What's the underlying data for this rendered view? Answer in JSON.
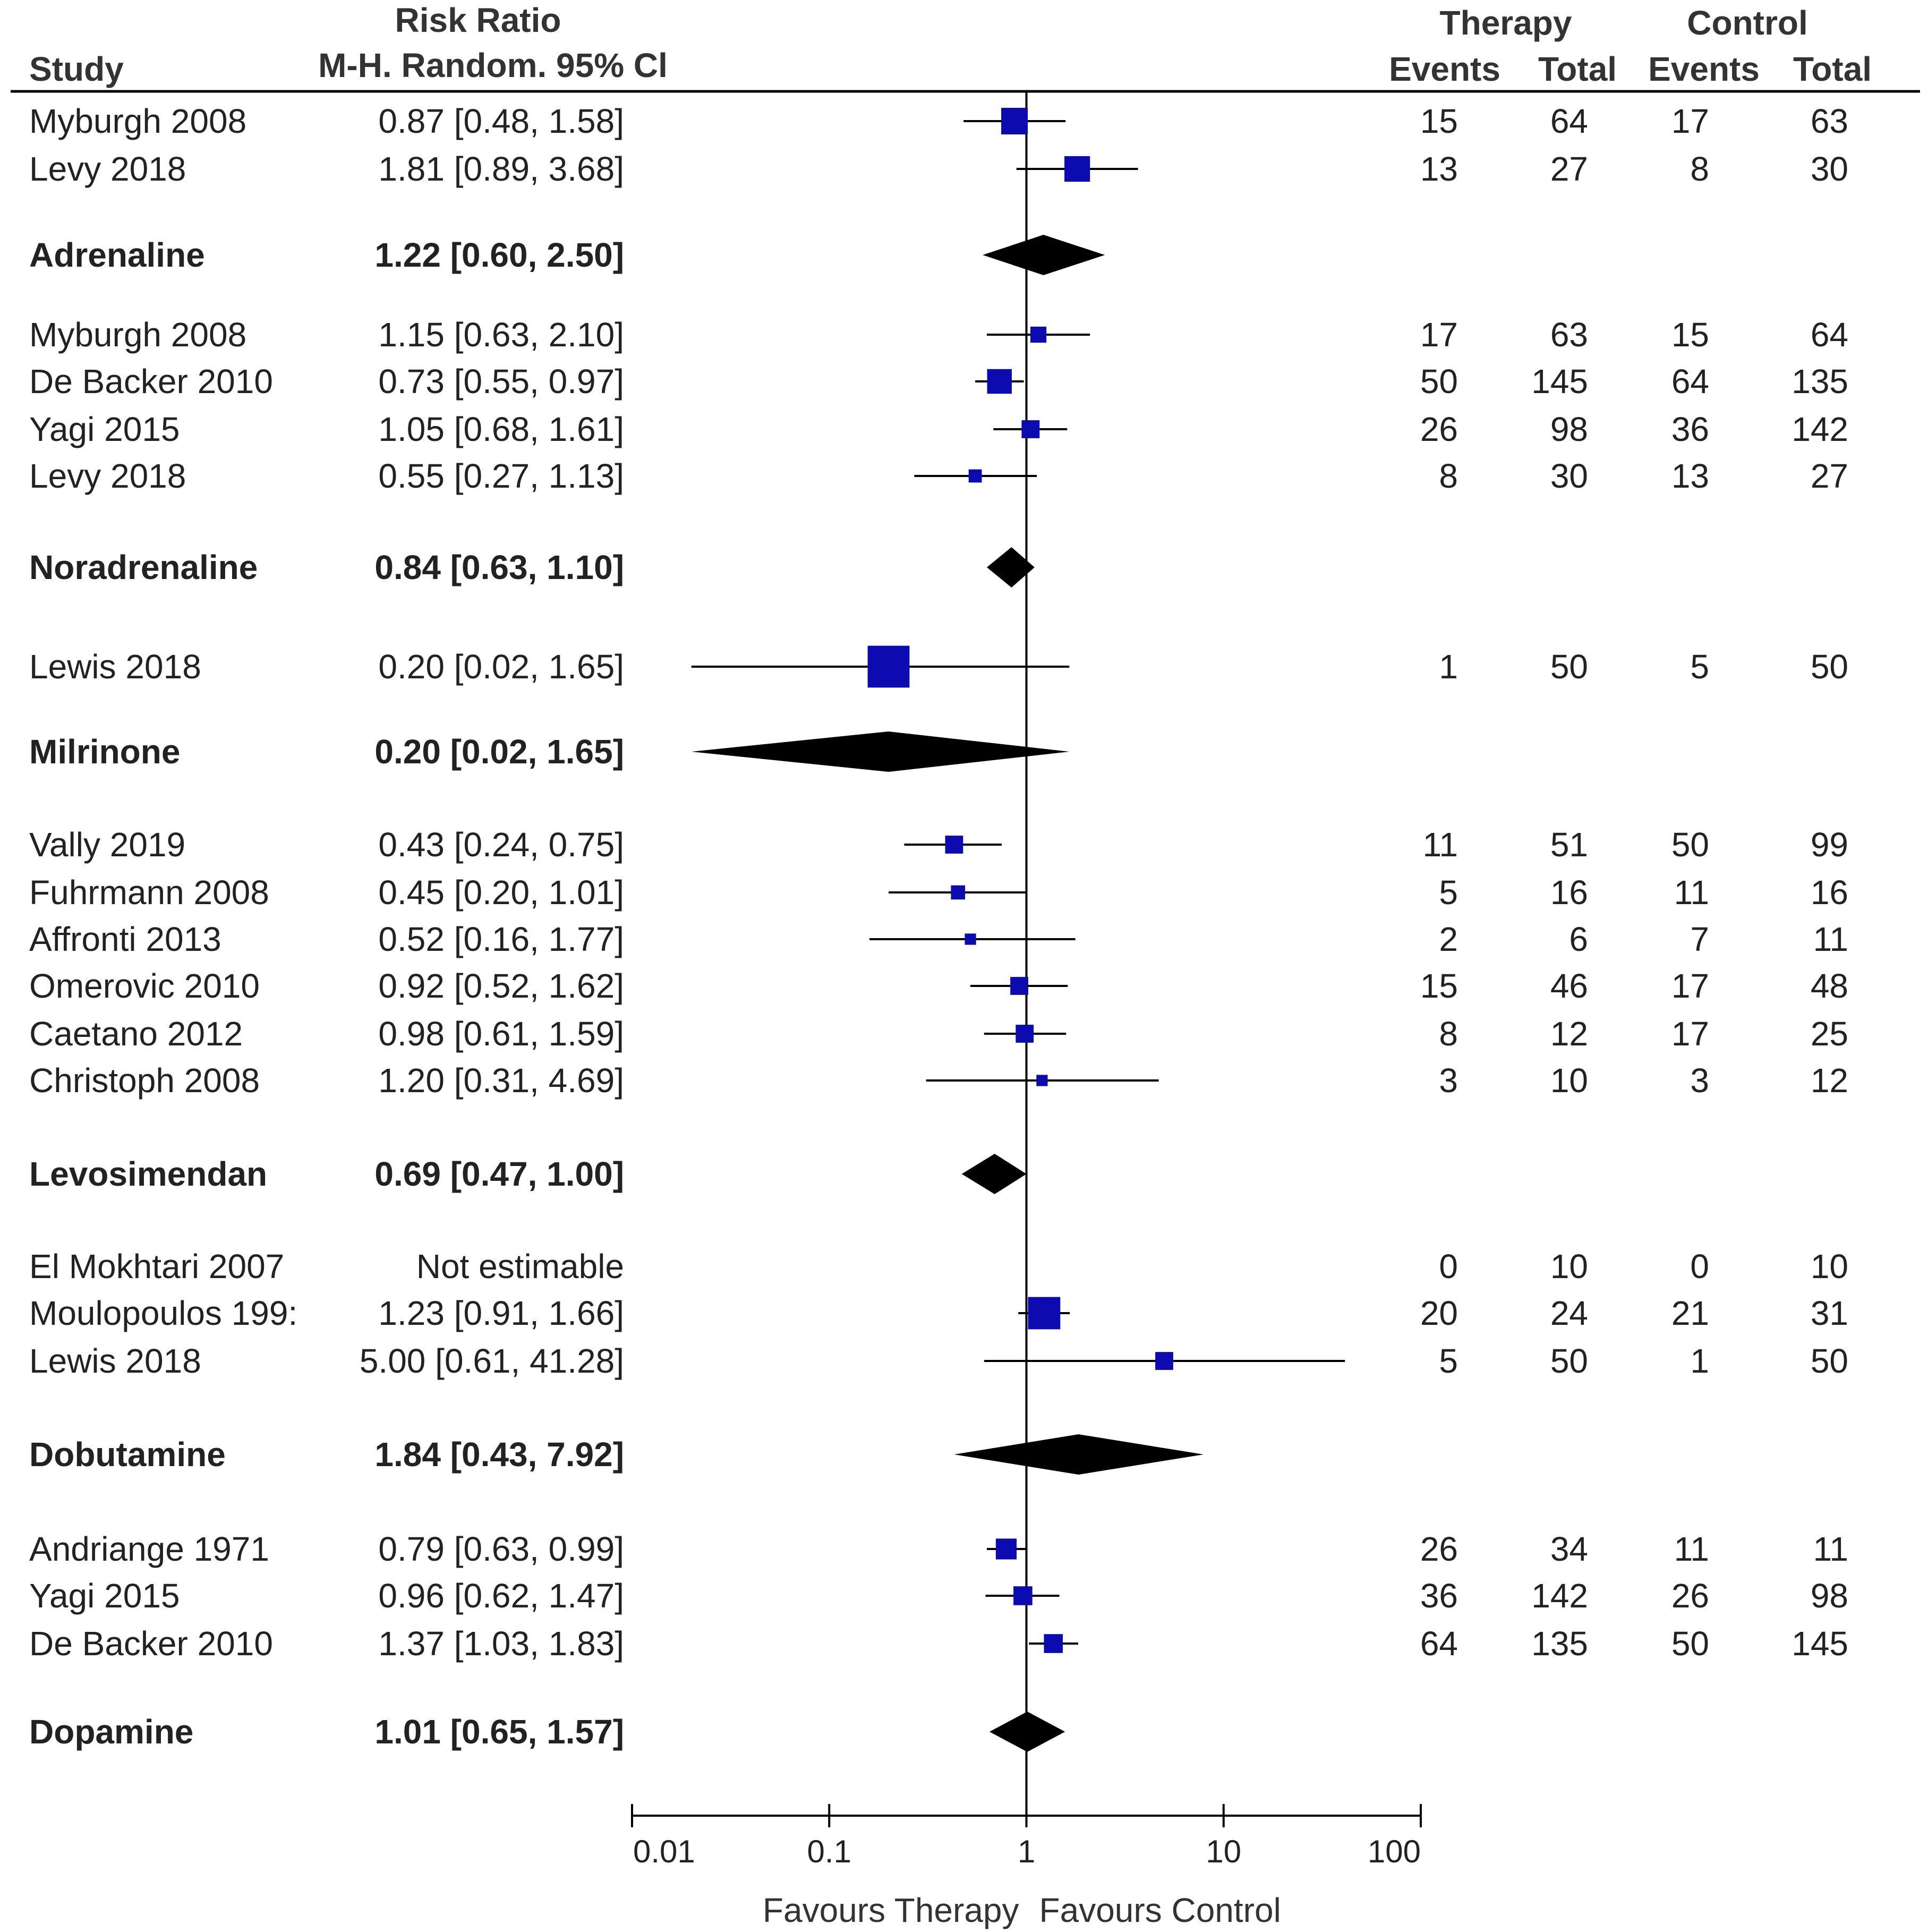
{
  "headers": {
    "study": "Study",
    "estimate_line1": "Risk Ratio",
    "estimate_line2": "M-H. Random. 95% Cl",
    "therapy": "Therapy",
    "control": "Control",
    "events": "Events",
    "total": "Total"
  },
  "axis": {
    "ticks": [
      0.01,
      0.1,
      1,
      10,
      100
    ],
    "tick_labels": [
      "0.01",
      "0.1",
      "1",
      "10",
      "100"
    ],
    "left_label": "Favours Therapy",
    "right_label": "Favours Control",
    "scale": "log",
    "range": [
      0.01,
      100
    ]
  },
  "colors": {
    "study_marker": "#0b0bb0",
    "pooled_diamond": "#000000",
    "line": "#000000"
  },
  "chart_data": {
    "type": "forest",
    "rows": [
      {
        "kind": "study",
        "label": "Myburgh 2008",
        "ci_text": "0.87 [0.48, 1.58]",
        "rr": 0.87,
        "lo": 0.48,
        "hi": 1.58,
        "weight": 1.0,
        "te": "15",
        "tt": "64",
        "ce": "17",
        "ct": "63"
      },
      {
        "kind": "study",
        "label": "Levy 2018",
        "ci_text": "1.81 [0.89, 3.68]",
        "rr": 1.81,
        "lo": 0.89,
        "hi": 3.68,
        "weight": 0.95,
        "te": "13",
        "tt": "27",
        "ce": "8",
        "ct": "30"
      },
      {
        "kind": "pooled",
        "label": "Adrenaline",
        "ci_text": "1.22 [0.60, 2.50]",
        "rr": 1.22,
        "lo": 0.6,
        "hi": 2.5
      },
      {
        "kind": "study",
        "label": "Myburgh 2008",
        "ci_text": "1.15 [0.63, 2.10]",
        "rr": 1.15,
        "lo": 0.63,
        "hi": 2.1,
        "weight": 0.45,
        "te": "17",
        "tt": "63",
        "ce": "15",
        "ct": "64"
      },
      {
        "kind": "study",
        "label": "De Backer 2010",
        "ci_text": "0.73 [0.55, 0.97]",
        "rr": 0.73,
        "lo": 0.55,
        "hi": 0.97,
        "weight": 0.9,
        "te": "50",
        "tt": "145",
        "ce": "64",
        "ct": "135"
      },
      {
        "kind": "study",
        "label": "Yagi 2015",
        "ci_text": "1.05 [0.68, 1.61]",
        "rr": 1.05,
        "lo": 0.68,
        "hi": 1.61,
        "weight": 0.55,
        "te": "26",
        "tt": "98",
        "ce": "36",
        "ct": "142"
      },
      {
        "kind": "study",
        "label": "Levy 2018",
        "ci_text": "0.55 [0.27, 1.13]",
        "rr": 0.55,
        "lo": 0.27,
        "hi": 1.13,
        "weight": 0.3,
        "te": "8",
        "tt": "30",
        "ce": "13",
        "ct": "27"
      },
      {
        "kind": "pooled",
        "label": "Noradrenaline",
        "ci_text": "0.84 [0.63, 1.10]",
        "rr": 0.84,
        "lo": 0.63,
        "hi": 1.1
      },
      {
        "kind": "study",
        "label": "Lewis 2018",
        "ci_text": "0.20 [0.02, 1.65]",
        "rr": 0.2,
        "lo": 0.02,
        "hi": 1.65,
        "weight": 1.8,
        "te": "1",
        "tt": "50",
        "ce": "5",
        "ct": "50"
      },
      {
        "kind": "pooled",
        "label": "Milrinone",
        "ci_text": "0.20 [0.02, 1.65]",
        "rr": 0.2,
        "lo": 0.02,
        "hi": 1.65
      },
      {
        "kind": "study",
        "label": "Vally 2019",
        "ci_text": "0.43 [0.24, 0.75]",
        "rr": 0.43,
        "lo": 0.24,
        "hi": 0.75,
        "weight": 0.55,
        "te": "11",
        "tt": "51",
        "ce": "50",
        "ct": "99"
      },
      {
        "kind": "study",
        "label": "Fuhrmann 2008",
        "ci_text": "0.45 [0.20, 1.01]",
        "rr": 0.45,
        "lo": 0.2,
        "hi": 1.01,
        "weight": 0.35,
        "te": "5",
        "tt": "16",
        "ce": "11",
        "ct": "16"
      },
      {
        "kind": "study",
        "label": "Affronti 2013",
        "ci_text": "0.52 [0.16, 1.77]",
        "rr": 0.52,
        "lo": 0.16,
        "hi": 1.77,
        "weight": 0.2,
        "te": "2",
        "tt": "6",
        "ce": "7",
        "ct": "11"
      },
      {
        "kind": "study",
        "label": "Omerovic 2010",
        "ci_text": "0.92 [0.52, 1.62]",
        "rr": 0.92,
        "lo": 0.52,
        "hi": 1.62,
        "weight": 0.55,
        "te": "15",
        "tt": "46",
        "ce": "17",
        "ct": "48"
      },
      {
        "kind": "study",
        "label": "Caetano 2012",
        "ci_text": "0.98 [0.61, 1.59]",
        "rr": 0.98,
        "lo": 0.61,
        "hi": 1.59,
        "weight": 0.55,
        "te": "8",
        "tt": "12",
        "ce": "17",
        "ct": "25"
      },
      {
        "kind": "study",
        "label": "Christoph 2008",
        "ci_text": "1.20 [0.31, 4.69]",
        "rr": 1.2,
        "lo": 0.31,
        "hi": 4.69,
        "weight": 0.2,
        "te": "3",
        "tt": "10",
        "ce": "3",
        "ct": "12"
      },
      {
        "kind": "pooled",
        "label": "Levosimendan",
        "ci_text": "0.69 [0.47, 1.00]",
        "rr": 0.69,
        "lo": 0.47,
        "hi": 1.0
      },
      {
        "kind": "study",
        "label": "El Mokhtari 2007",
        "ci_text": "Not estimable",
        "rr": null,
        "lo": null,
        "hi": null,
        "weight": 0,
        "te": "0",
        "tt": "10",
        "ce": "0",
        "ct": "10"
      },
      {
        "kind": "study",
        "label": "Moulopoulos 199:",
        "ci_text": "1.23 [0.91, 1.66]",
        "rr": 1.23,
        "lo": 0.91,
        "hi": 1.66,
        "weight": 1.3,
        "te": "20",
        "tt": "24",
        "ce": "21",
        "ct": "31"
      },
      {
        "kind": "study",
        "label": "Lewis 2018",
        "ci_text": "5.00 [0.61, 41.28]",
        "rr": 5.0,
        "lo": 0.61,
        "hi": 41.28,
        "weight": 0.55,
        "te": "5",
        "tt": "50",
        "ce": "1",
        "ct": "50"
      },
      {
        "kind": "pooled",
        "label": "Dobutamine",
        "ci_text": "1.84 [0.43, 7.92]",
        "rr": 1.84,
        "lo": 0.43,
        "hi": 7.92
      },
      {
        "kind": "study",
        "label": "Andriange 1971",
        "ci_text": "0.79 [0.63, 0.99]",
        "rr": 0.79,
        "lo": 0.63,
        "hi": 0.99,
        "weight": 0.7,
        "te": "26",
        "tt": "34",
        "ce": "11",
        "ct": "11"
      },
      {
        "kind": "study",
        "label": "Yagi 2015",
        "ci_text": "0.96 [0.62, 1.47]",
        "rr": 0.96,
        "lo": 0.62,
        "hi": 1.47,
        "weight": 0.6,
        "te": "36",
        "tt": "142",
        "ce": "26",
        "ct": "98"
      },
      {
        "kind": "study",
        "label": "De Backer 2010",
        "ci_text": "1.37 [1.03, 1.83]",
        "rr": 1.37,
        "lo": 1.03,
        "hi": 1.83,
        "weight": 0.6,
        "te": "64",
        "tt": "135",
        "ce": "50",
        "ct": "145"
      },
      {
        "kind": "pooled",
        "label": "Dopamine",
        "ci_text": "1.01 [0.65, 1.57]",
        "rr": 1.01,
        "lo": 0.65,
        "hi": 1.57
      }
    ]
  }
}
